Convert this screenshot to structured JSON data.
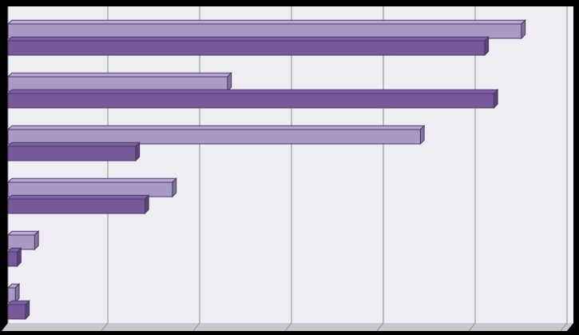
{
  "chart_data": {
    "type": "bar",
    "orientation": "horizontal",
    "style": "3d",
    "title": "",
    "xlabel": "",
    "ylabel": "",
    "grid": true,
    "legend": "none",
    "categories": [
      "",
      "",
      "",
      "",
      "",
      ""
    ],
    "xlim": [
      0,
      600
    ],
    "series": [
      {
        "values": [
          559,
          239,
          449,
          179,
          29,
          8
        ],
        "color": "#a99ac4"
      },
      {
        "values": [
          519,
          529,
          139,
          149,
          10,
          19
        ],
        "color": "#77589a"
      }
    ],
    "colors": {
      "background": "#000000",
      "plot_area": "#efecf4",
      "gridline": "#8c8c8c"
    }
  }
}
